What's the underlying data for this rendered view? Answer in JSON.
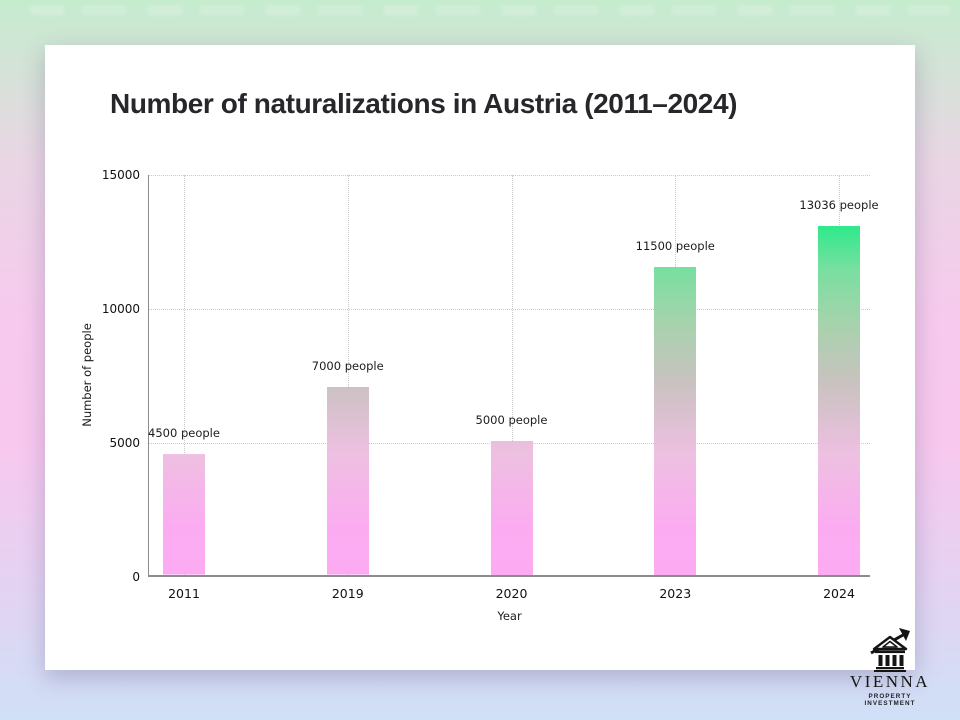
{
  "slide": {
    "title": "Number of naturalizations in Austria (2011–2024)"
  },
  "chart_data": {
    "type": "bar",
    "title": "Number of naturalizations in Austria (2011–2024)",
    "categories": [
      "2011",
      "2019",
      "2020",
      "2023",
      "2024"
    ],
    "values": [
      4500,
      7000,
      5000,
      11500,
      13036
    ],
    "bar_labels": [
      "4500 people",
      "7000 people",
      "5000 people",
      "11500 people",
      "13036 people"
    ],
    "xlabel": "Year",
    "ylabel": "Number of people",
    "ylim": [
      0,
      15000
    ],
    "yticks": [
      0,
      5000,
      10000,
      15000
    ],
    "grid": true,
    "grid_style": "dotted",
    "legend": "none",
    "bar_gradient_top": "#2ee98b",
    "bar_gradient_bottom": "#fbaaf2",
    "gridline_color": "#c9c9c9",
    "axis_color": "#8c8c8c"
  },
  "branding": {
    "name": "VIENNA",
    "tagline": "PROPERTY INVESTMENT",
    "icon": "bank-building-arrow-icon"
  },
  "colors": {
    "card_background": "#ffffff",
    "title_text": "#26262b",
    "background_top": "#c5ecce",
    "background_middle": "#f8c8ef",
    "background_bottom": "#cfe0f7"
  }
}
